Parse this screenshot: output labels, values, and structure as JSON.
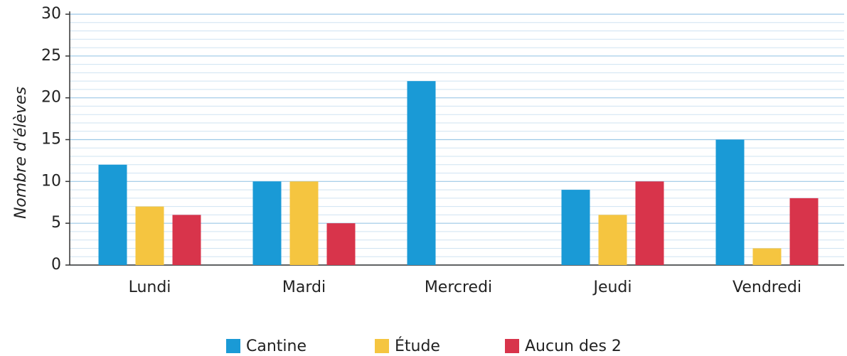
{
  "chart_data": {
    "type": "bar",
    "ylabel": "Nombre d'élèves",
    "categories": [
      "Lundi",
      "Mardi",
      "Mercredi",
      "Jeudi",
      "Vendredi"
    ],
    "series": [
      {
        "name": "Cantine",
        "color": "#1a9ad6",
        "values": [
          12,
          10,
          22,
          9,
          15
        ]
      },
      {
        "name": "Étude",
        "color": "#f5c540",
        "values": [
          7,
          10,
          0,
          6,
          2
        ]
      },
      {
        "name": "Aucun des 2",
        "color": "#d8344b",
        "values": [
          6,
          5,
          0,
          10,
          8
        ]
      }
    ],
    "ylim": [
      0,
      30
    ],
    "yticks": [
      0,
      5,
      10,
      15,
      20,
      25,
      30
    ],
    "grid": true,
    "legend": "bottom"
  }
}
